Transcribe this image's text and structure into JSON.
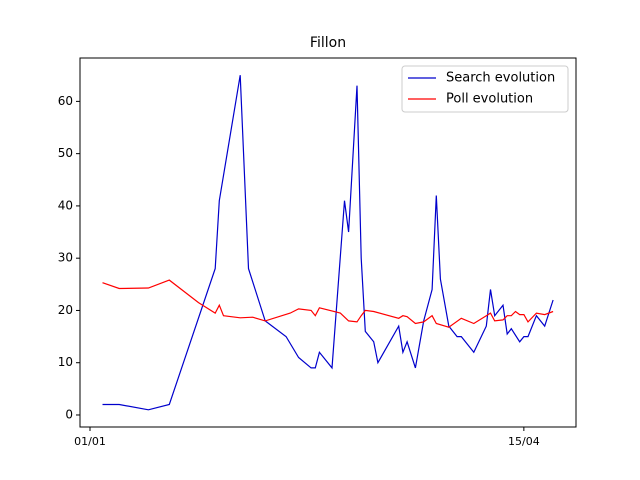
{
  "chart_data": {
    "type": "line",
    "title": "Fillon",
    "xlim": [
      -2.4,
      116.5
    ],
    "xticks": [
      {
        "value": 0,
        "label": "01/01"
      },
      {
        "value": 104,
        "label": "15/04"
      }
    ],
    "ylim": [
      -2.3,
      68.3
    ],
    "yticks": [
      0,
      10,
      20,
      30,
      40,
      50,
      60
    ],
    "legend": "upper right",
    "series": [
      {
        "name": "Search evolution",
        "color": "#0000cc",
        "x": [
          3,
          7,
          14,
          19,
          30,
          31,
          36,
          38,
          42,
          47,
          50,
          53,
          54,
          55,
          58,
          61,
          62,
          64,
          65,
          66,
          68,
          69,
          74,
          75,
          76,
          78,
          80,
          82,
          83,
          84,
          86,
          88,
          89,
          92,
          95,
          96,
          97,
          99,
          100,
          101,
          103,
          104,
          105,
          107,
          109,
          111
        ],
        "values": [
          2,
          2,
          1,
          2,
          28,
          41,
          65,
          28,
          18,
          15,
          11,
          9,
          9,
          12,
          9,
          41,
          35,
          63,
          30,
          16,
          14,
          10,
          17,
          12,
          14,
          9,
          18,
          24,
          42,
          26,
          17,
          15,
          15,
          12,
          17,
          24,
          19,
          21,
          15.5,
          16.5,
          14,
          15,
          15,
          19,
          17,
          22
        ]
      },
      {
        "name": "Poll evolution",
        "color": "#ff0000",
        "x": [
          3,
          7,
          14,
          19,
          26,
          30,
          31,
          32,
          36,
          39,
          42,
          48,
          50,
          53,
          54,
          55,
          60,
          62,
          64,
          65,
          66,
          68,
          74,
          75,
          76,
          78,
          80,
          82,
          83,
          86,
          89,
          92,
          95,
          96,
          97,
          99,
          100,
          101,
          102,
          103,
          104,
          105,
          107,
          109,
          111
        ],
        "values": [
          25.3,
          24.2,
          24.3,
          25.8,
          21.5,
          19.5,
          21,
          19,
          18.6,
          18.7,
          18,
          19.5,
          20.3,
          20,
          19,
          20.5,
          19.5,
          18,
          17.8,
          19,
          20,
          19.8,
          18.5,
          19,
          18.8,
          17.5,
          17.8,
          19,
          17.5,
          16.8,
          18.5,
          17.5,
          19,
          19.5,
          18,
          18.2,
          19,
          19,
          19.8,
          19.2,
          19.2,
          17.8,
          19.5,
          19.2,
          19.8
        ]
      }
    ]
  }
}
